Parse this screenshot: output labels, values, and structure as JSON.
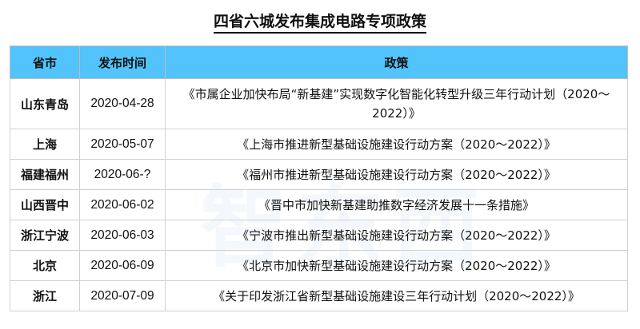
{
  "title": "四省六城发布集成电路专项政策",
  "headers": [
    "省市",
    "发布时间",
    "政策"
  ],
  "rows": [
    {
      "region": "山东青岛",
      "date": "2020-04-28",
      "policy": "《市属企业加快布局“新基建”实现数字化智能化转型升级三年行动计划（2020～2022）》"
    },
    {
      "region": "上海",
      "date": "2020-05-07",
      "policy": "《上海市推进新型基础设施建设行动方案（2020～2022）》"
    },
    {
      "region": "福建福州",
      "date": "2020-06-?",
      "policy": "《福州市推进新型基础设施建设行动方案（2020～2022）》"
    },
    {
      "region": "山西晋中",
      "date": "2020-06-02",
      "policy": "《晋中市加快新基建助推数字经济发展十一条措施》"
    },
    {
      "region": "浙江宁波",
      "date": "2020-06-03",
      "policy": "《宁波市推出新型基础设施建设行动方案（2020～2022）》"
    },
    {
      "region": "北京",
      "date": "2020-06-09",
      "policy": "《北京市加快新型基础设施建设行动方案（2020～2022）》"
    },
    {
      "region": "浙江",
      "date": "2020-07-09",
      "policy": "《关于印发浙江省新型基础设施建设三年行动计划（2020～2022）》"
    }
  ],
  "colors": {
    "header_bg": "#52c3fb"
  }
}
